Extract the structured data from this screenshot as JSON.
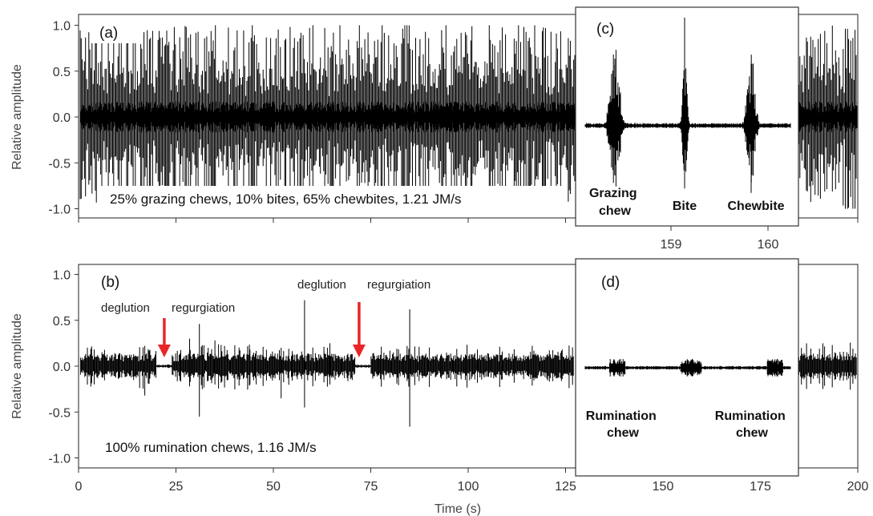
{
  "chart_data": [
    {
      "panel": "(a)",
      "type": "line",
      "ylabel": "Relative amplitude",
      "ylim": [
        -1.0,
        1.0
      ],
      "yticks": [
        "1.0",
        "0.5",
        "0.0",
        "-0.5",
        "-1.0"
      ],
      "xlim": [
        0,
        200
      ],
      "annotation": "25% grazing chews, 10% bites, 65% chewbites, 1.21 JM/s",
      "inset": {
        "panel": "(c)",
        "xticks": [
          "159",
          "160"
        ],
        "labels": [
          {
            "text": [
              "Grazing",
              "chew"
            ]
          },
          {
            "text": [
              "Bite"
            ]
          },
          {
            "text": [
              "Chewbite"
            ]
          }
        ]
      }
    },
    {
      "panel": "(b)",
      "type": "line",
      "ylabel": "Relative amplitude",
      "ylim": [
        -1.0,
        1.0
      ],
      "yticks": [
        "1.0",
        "0.5",
        "0.0",
        "-0.5",
        "-1.0"
      ],
      "xlim": [
        0,
        200
      ],
      "xticks": [
        "0",
        "25",
        "50",
        "75",
        "100",
        "125",
        "150",
        "175",
        "200"
      ],
      "xlabel": "Time (s)",
      "annotation": "100% rumination chews, 1.16 JM/s",
      "events": [
        {
          "deglution_label": "deglution",
          "regurgiation_label": "regurgiation",
          "arrow_x": 22
        },
        {
          "deglution_label": "deglution",
          "regurgiation_label": "regurgiation",
          "arrow_x": 72
        }
      ],
      "arrow_color": "#e8262a",
      "inset": {
        "panel": "(d)",
        "labels": [
          {
            "text": [
              "Rumination",
              "chew"
            ]
          },
          {
            "text": [
              "Rumination",
              "chew"
            ]
          }
        ]
      }
    }
  ]
}
